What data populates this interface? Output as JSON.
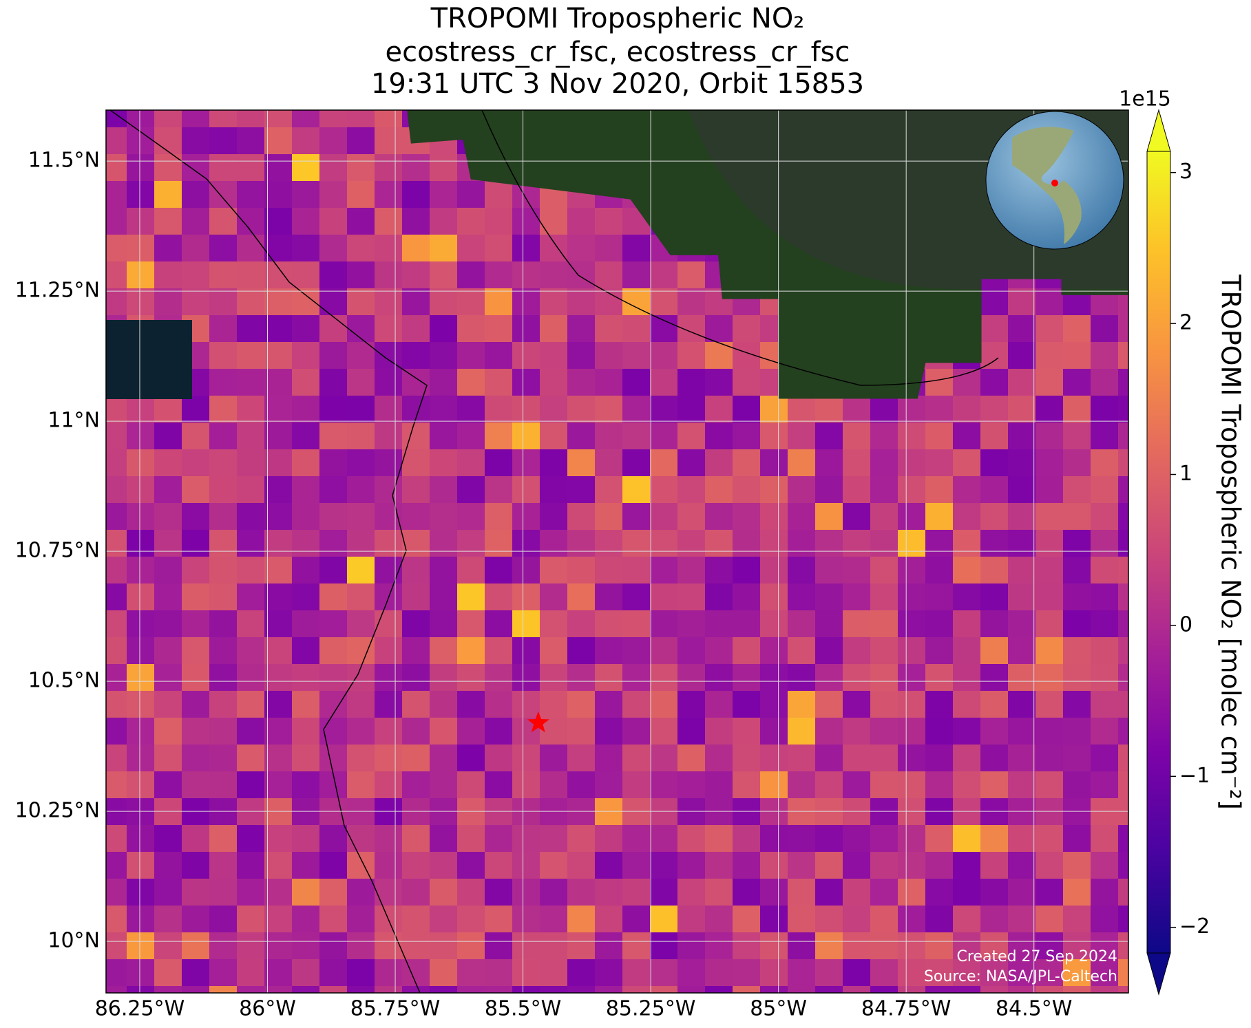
{
  "title": [
    "TROPOMI Tropospheric NO₂",
    "ecostress_cr_fsc, ecostress_cr_fsc",
    "19:31 UTC 3 Nov 2020, Orbit 15853"
  ],
  "map": {
    "lonlim": [
      -86.316,
      -84.315
    ],
    "latlim": [
      9.901,
      11.598
    ],
    "lon_ticks": [
      {
        "value": -86.25,
        "label": "86.25°W"
      },
      {
        "value": -86,
        "label": "86°W"
      },
      {
        "value": -85.75,
        "label": "85.75°W"
      },
      {
        "value": -85.5,
        "label": "85.5°W"
      },
      {
        "value": -85.25,
        "label": "85.25°W"
      },
      {
        "value": -85,
        "label": "85°W"
      },
      {
        "value": -84.75,
        "label": "84.75°W"
      },
      {
        "value": -84.5,
        "label": "84.5°W"
      }
    ],
    "lat_ticks": [
      {
        "value": 10,
        "label": "10°N"
      },
      {
        "value": 10.25,
        "label": "10.25°N"
      },
      {
        "value": 10.5,
        "label": "10.5°N"
      },
      {
        "value": 10.75,
        "label": "10.75°N"
      },
      {
        "value": 11,
        "label": "11°N"
      },
      {
        "value": 11.25,
        "label": "11.25°N"
      },
      {
        "value": 11.5,
        "label": "11.5°N"
      }
    ],
    "marker": {
      "lon": -85.47,
      "lat": 10.42
    }
  },
  "colorbar": {
    "label": "TROPOMI Tropospheric NO₂ [molec cm⁻²]",
    "exponent": "1e15",
    "lim": [
      -2.17,
      3.14
    ],
    "ticks": [
      {
        "value": -2,
        "label": "−2"
      },
      {
        "value": -1,
        "label": "−1"
      },
      0,
      1,
      2,
      3
    ]
  },
  "credits": [
    "Created 27 Sep 2024",
    "Source: NASA/JPL-Caltech"
  ]
}
